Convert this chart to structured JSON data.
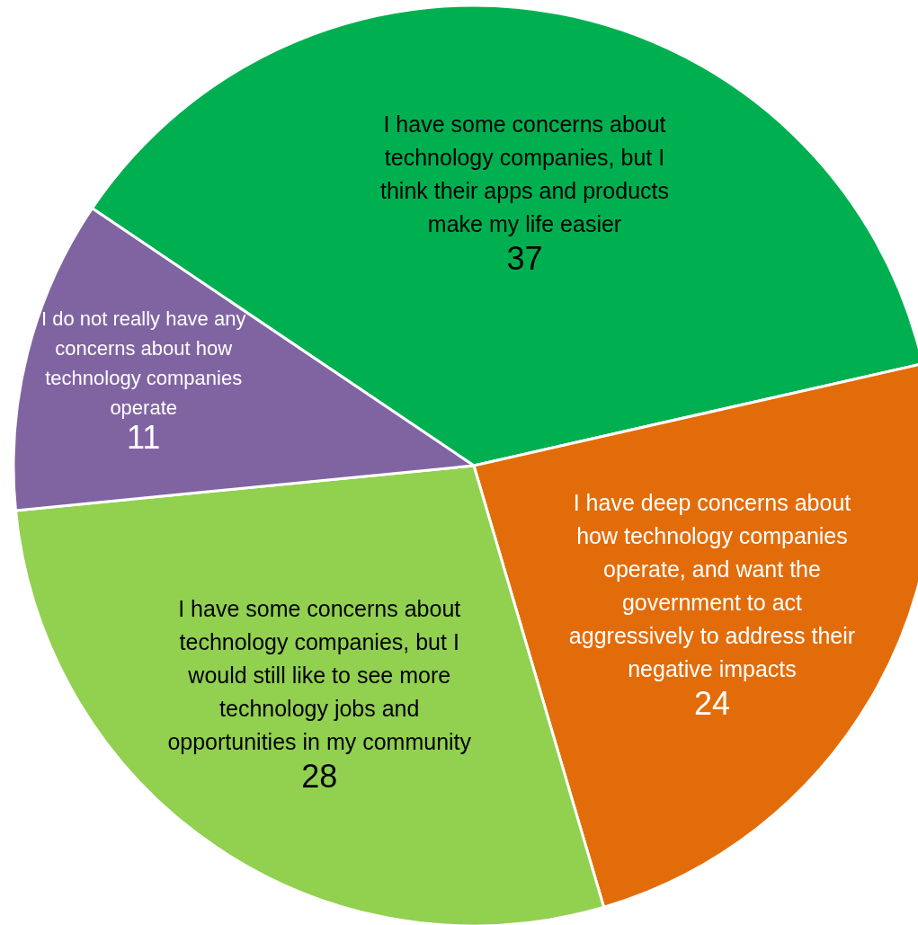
{
  "chart_data": {
    "type": "pie",
    "categories": [
      "I have some concerns about technology companies, but I think their apps and products make my life easier",
      "I have deep concerns about how technology companies operate, and want the government to act aggressively to address their negative impacts",
      "I have some concerns about technology companies, but I would still like to see more technology jobs and opportunities in my community",
      "I do not really have any concerns about how technology companies operate"
    ],
    "values": [
      37,
      24,
      28,
      11
    ],
    "colors": [
      "#00b050",
      "#e36c0a",
      "#92d050",
      "#8064a2"
    ],
    "data_labels": true,
    "legend": false
  }
}
